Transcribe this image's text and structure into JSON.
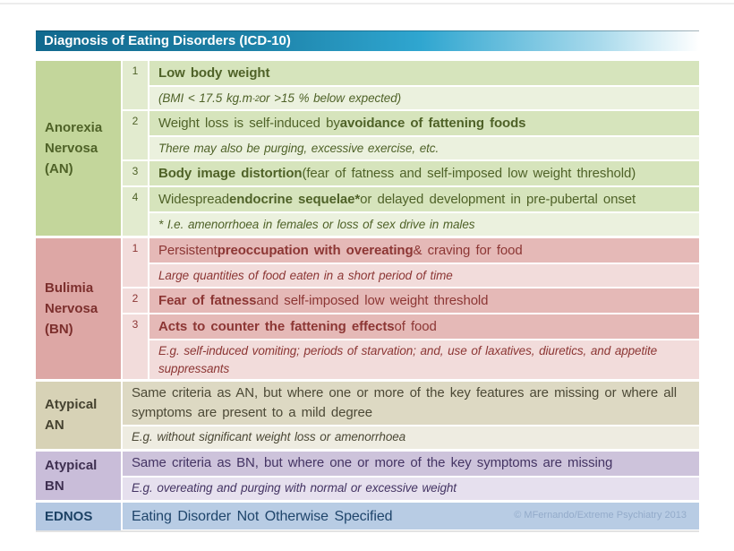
{
  "title_bar": {
    "text": "Diagnosis of Eating Disorders (ICD-10)",
    "gradient": [
      "#11698e 0%",
      "#1b7ea4 30%",
      "#2fa6d0 58%",
      "#a9daec 85%",
      "#ffffff 100%"
    ]
  },
  "sections": [
    {
      "id": "anorexia-nervosa",
      "label": "Anorexia Nervosa (AN)",
      "colors": {
        "label_bg": "#c3d69b",
        "label_text": "#4f6228",
        "num_bg": "#e2ebcf",
        "main_bg": "#d6e4bc",
        "sub_bg": "#ebf1de",
        "text": "#4f6228"
      },
      "criteria": [
        {
          "num": "1",
          "main": [
            {
              "t": "Low body weight",
              "b": true
            }
          ],
          "sub": [
            {
              "t": "(BMI < 17.5 kg.m"
            },
            {
              "t": "-2",
              "sup": true
            },
            {
              "t": " or >15 % below expected)"
            }
          ]
        },
        {
          "num": "2",
          "main": [
            {
              "t": "Weight loss is self-induced by "
            },
            {
              "t": "avoidance of fattening foods",
              "b": true
            }
          ],
          "sub": [
            {
              "t": "There may also be purging, excessive exercise, etc."
            }
          ]
        },
        {
          "num": "3",
          "main": [
            {
              "t": "Body image distortion",
              "b": true
            },
            {
              "t": " (fear of fatness and self-imposed low weight threshold)"
            }
          ]
        },
        {
          "num": "4",
          "main": [
            {
              "t": "Widespread "
            },
            {
              "t": "endocrine sequelae*",
              "b": true
            },
            {
              "t": " or delayed development in pre-pubertal onset"
            }
          ],
          "sub": [
            {
              "t": "* I.e. amenorrhoea in females or loss of sex drive in males"
            }
          ]
        }
      ]
    },
    {
      "id": "bulimia-nervosa",
      "label": "Bulimia Nervosa (BN)",
      "colors": {
        "label_bg": "#dda7a5",
        "label_text": "#7c2f2d",
        "num_bg": "#f2dcdb",
        "main_bg": "#e5b9b7",
        "sub_bg": "#f2dcdb",
        "text": "#8c3634"
      },
      "criteria": [
        {
          "num": "1",
          "main": [
            {
              "t": "Persistent "
            },
            {
              "t": "preoccupation with overeating",
              "b": true
            },
            {
              "t": " & craving for food"
            }
          ],
          "sub": [
            {
              "t": "Large quantities of food eaten in a short period of time"
            }
          ]
        },
        {
          "num": "2",
          "main": [
            {
              "t": "Fear of fatness",
              "b": true
            },
            {
              "t": " and self-imposed low weight threshold"
            }
          ]
        },
        {
          "num": "3",
          "main": [
            {
              "t": "Acts to counter the fattening effects",
              "b": true
            },
            {
              "t": " of food"
            }
          ],
          "sub": [
            {
              "t": "E.g. self-induced vomiting; periods of starvation; and, use of laxatives, diuretics, and appetite suppressants"
            }
          ]
        }
      ]
    },
    {
      "id": "atypical-an",
      "label": "Atypical AN",
      "colors": {
        "label_bg": "#d7d2b6",
        "label_text": "#454230",
        "main_bg": "#ddd9c3",
        "sub_bg": "#eeece1",
        "text": "#4c4936"
      },
      "rows": [
        {
          "main": [
            {
              "t": "Same criteria as AN, but where one or more of the key features are missing or where all symptoms are present to a mild degree"
            }
          ],
          "sub": [
            {
              "t": "E.g. without significant weight loss or amenorrhoea"
            }
          ]
        }
      ]
    },
    {
      "id": "atypical-bn",
      "label": "Atypical BN",
      "colors": {
        "label_bg": "#c9bdd9",
        "label_text": "#3f3051",
        "main_bg": "#cdc3db",
        "sub_bg": "#e6e0ee",
        "text": "#443463"
      },
      "rows": [
        {
          "main": [
            {
              "t": "Same criteria as BN, but where one or more of the key symptoms are missing"
            }
          ],
          "sub": [
            {
              "t": "E.g. overeating and purging with normal or excessive weight"
            }
          ]
        }
      ]
    },
    {
      "id": "ednos",
      "label": "EDNOS",
      "colors": {
        "label_bg": "#b4c8e2",
        "label_text": "#1d4265",
        "main_bg": "#b8cce4",
        "text": "#1f456b",
        "credit_text": "#93abca"
      },
      "rows": [
        {
          "main": [
            {
              "t": "Eating Disorder Not Otherwise Specified"
            }
          ],
          "credit": "© MFernando/Extreme  Psychiatry 2013"
        }
      ]
    }
  ]
}
